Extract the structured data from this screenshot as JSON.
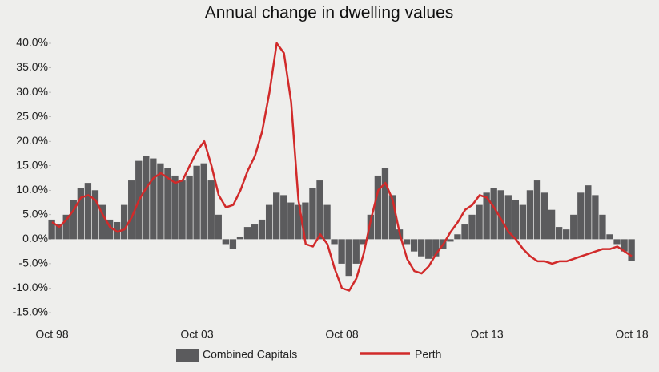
{
  "chart_data": {
    "type": "bar_line",
    "title": "Annual change in dwelling values",
    "categories": [
      "Oct 98",
      null,
      null,
      null,
      null,
      null,
      null,
      null,
      null,
      null,
      null,
      null,
      null,
      null,
      null,
      null,
      null,
      null,
      null,
      null,
      "Oct 03",
      null,
      null,
      null,
      null,
      null,
      null,
      null,
      null,
      null,
      null,
      null,
      null,
      null,
      null,
      null,
      null,
      null,
      null,
      null,
      "Oct 08",
      null,
      null,
      null,
      null,
      null,
      null,
      null,
      null,
      null,
      null,
      null,
      null,
      null,
      null,
      null,
      null,
      null,
      null,
      null,
      "Oct 13",
      null,
      null,
      null,
      null,
      null,
      null,
      null,
      null,
      null,
      null,
      null,
      null,
      null,
      null,
      null,
      null,
      null,
      null,
      null,
      "Oct 18"
    ],
    "series": [
      {
        "name": "Combined Capitals",
        "type": "bar",
        "color": "#5b5b5d",
        "values": [
          4,
          3,
          5,
          8,
          10.5,
          11.5,
          10,
          7,
          4,
          3.5,
          7,
          12,
          16,
          17,
          16.5,
          15.5,
          14.5,
          13,
          12,
          13,
          15,
          15.5,
          12,
          5,
          -1,
          -2,
          0.5,
          2.5,
          3,
          4,
          7,
          9.5,
          9,
          7.5,
          7,
          7.5,
          10.5,
          12,
          7,
          -1,
          -5,
          -7.5,
          -5,
          -1,
          5,
          13,
          14.5,
          9,
          2,
          -1,
          -2.5,
          -3.5,
          -4,
          -3.5,
          -2,
          -0.5,
          1,
          3,
          5,
          7,
          9.5,
          10.5,
          10,
          9,
          8,
          7,
          10,
          12,
          9.5,
          6,
          2.5,
          2,
          5,
          9.5,
          11,
          9,
          5,
          1,
          -1,
          -2.5,
          -4.5
        ]
      },
      {
        "name": "Perth",
        "type": "line",
        "color": "#d12a2a",
        "values": [
          3.5,
          2.5,
          4,
          6,
          8.5,
          9,
          8,
          5,
          2.5,
          1.5,
          2,
          4.5,
          8,
          10.5,
          12.5,
          13.5,
          12.5,
          11.5,
          12,
          15,
          18,
          20,
          15,
          9,
          6.5,
          7,
          10,
          14,
          17,
          22,
          30,
          40,
          38,
          28,
          8,
          -1,
          -1.5,
          1,
          -1,
          -6,
          -10,
          -10.5,
          -8,
          -3,
          4,
          10,
          11.5,
          8,
          1,
          -4,
          -6.5,
          -7,
          -5.5,
          -3,
          -1,
          1.5,
          3.5,
          6,
          7,
          9,
          8.5,
          6.5,
          4,
          1.5,
          0,
          -2,
          -3.5,
          -4.5,
          -4.5,
          -5,
          -4.5,
          -4.5,
          -4,
          -3.5,
          -3,
          -2.5,
          -2,
          -2,
          -1.5,
          -2.5,
          -3.5
        ]
      }
    ],
    "ylim": [
      -15,
      40
    ],
    "yticks": [
      {
        "value": -15,
        "label": "-15.0%"
      },
      {
        "value": -10,
        "label": "-10.0%"
      },
      {
        "value": -5,
        "label": "-5.0%"
      },
      {
        "value": 0,
        "label": "0.0%"
      },
      {
        "value": 5,
        "label": "5.0%"
      },
      {
        "value": 10,
        "label": "10.0%"
      },
      {
        "value": 15,
        "label": "15.0%"
      },
      {
        "value": 20,
        "label": "20.0%"
      },
      {
        "value": 25,
        "label": "25.0%"
      },
      {
        "value": 30,
        "label": "30.0%"
      },
      {
        "value": 35,
        "label": "35.0%"
      },
      {
        "value": 40,
        "label": "40.0%"
      }
    ],
    "grid": false
  }
}
